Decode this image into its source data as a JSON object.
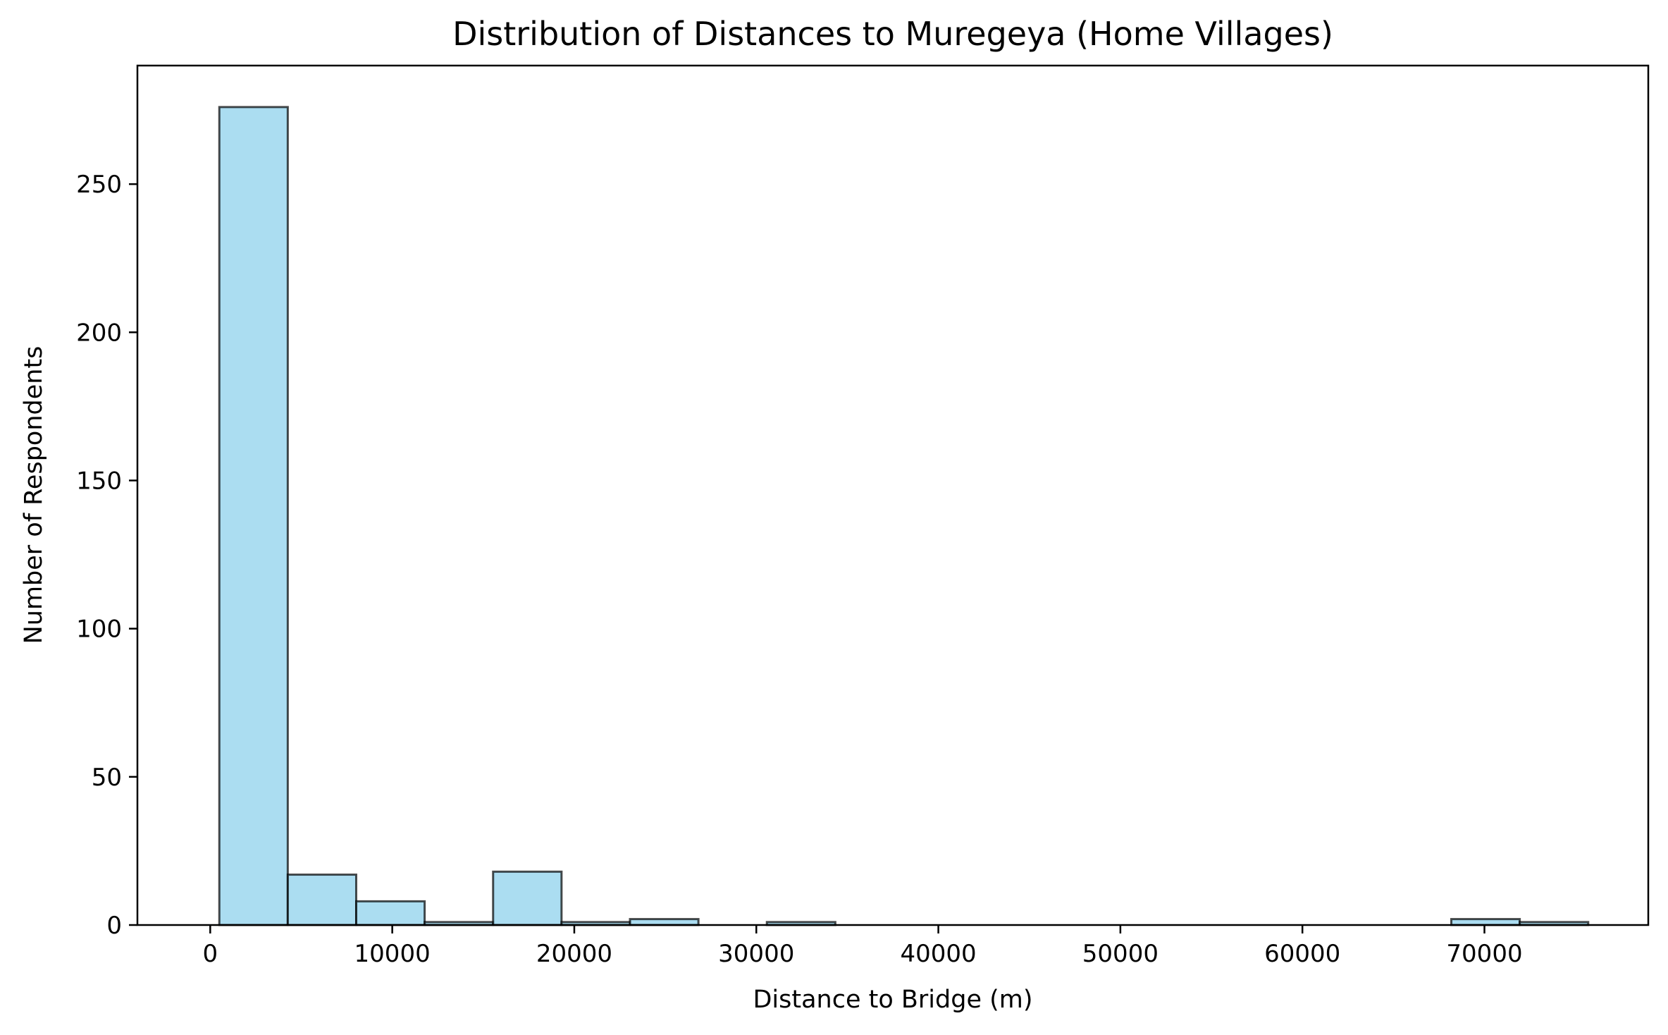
{
  "chart_data": {
    "type": "bar",
    "subtype": "histogram",
    "title": "Distribution of Distances to Muregeya (Home Villages)",
    "xlabel": "Distance to Bridge (m)",
    "ylabel": "Number of Respondents",
    "xlim": [
      -4000,
      79000
    ],
    "ylim": [
      0,
      290
    ],
    "xticks": [
      0,
      10000,
      20000,
      30000,
      40000,
      50000,
      60000,
      70000
    ],
    "yticks": [
      0,
      50,
      100,
      150,
      200,
      250
    ],
    "bin_start": 500,
    "bin_width": 3760,
    "counts": [
      276,
      17,
      8,
      1,
      18,
      1,
      2,
      0,
      1,
      0,
      0,
      0,
      0,
      0,
      0,
      0,
      0,
      0,
      2,
      1
    ],
    "bar_color": "#87ceeb",
    "bar_opacity": 0.7,
    "edge_color": "#000000",
    "grid": false,
    "legend": false
  }
}
